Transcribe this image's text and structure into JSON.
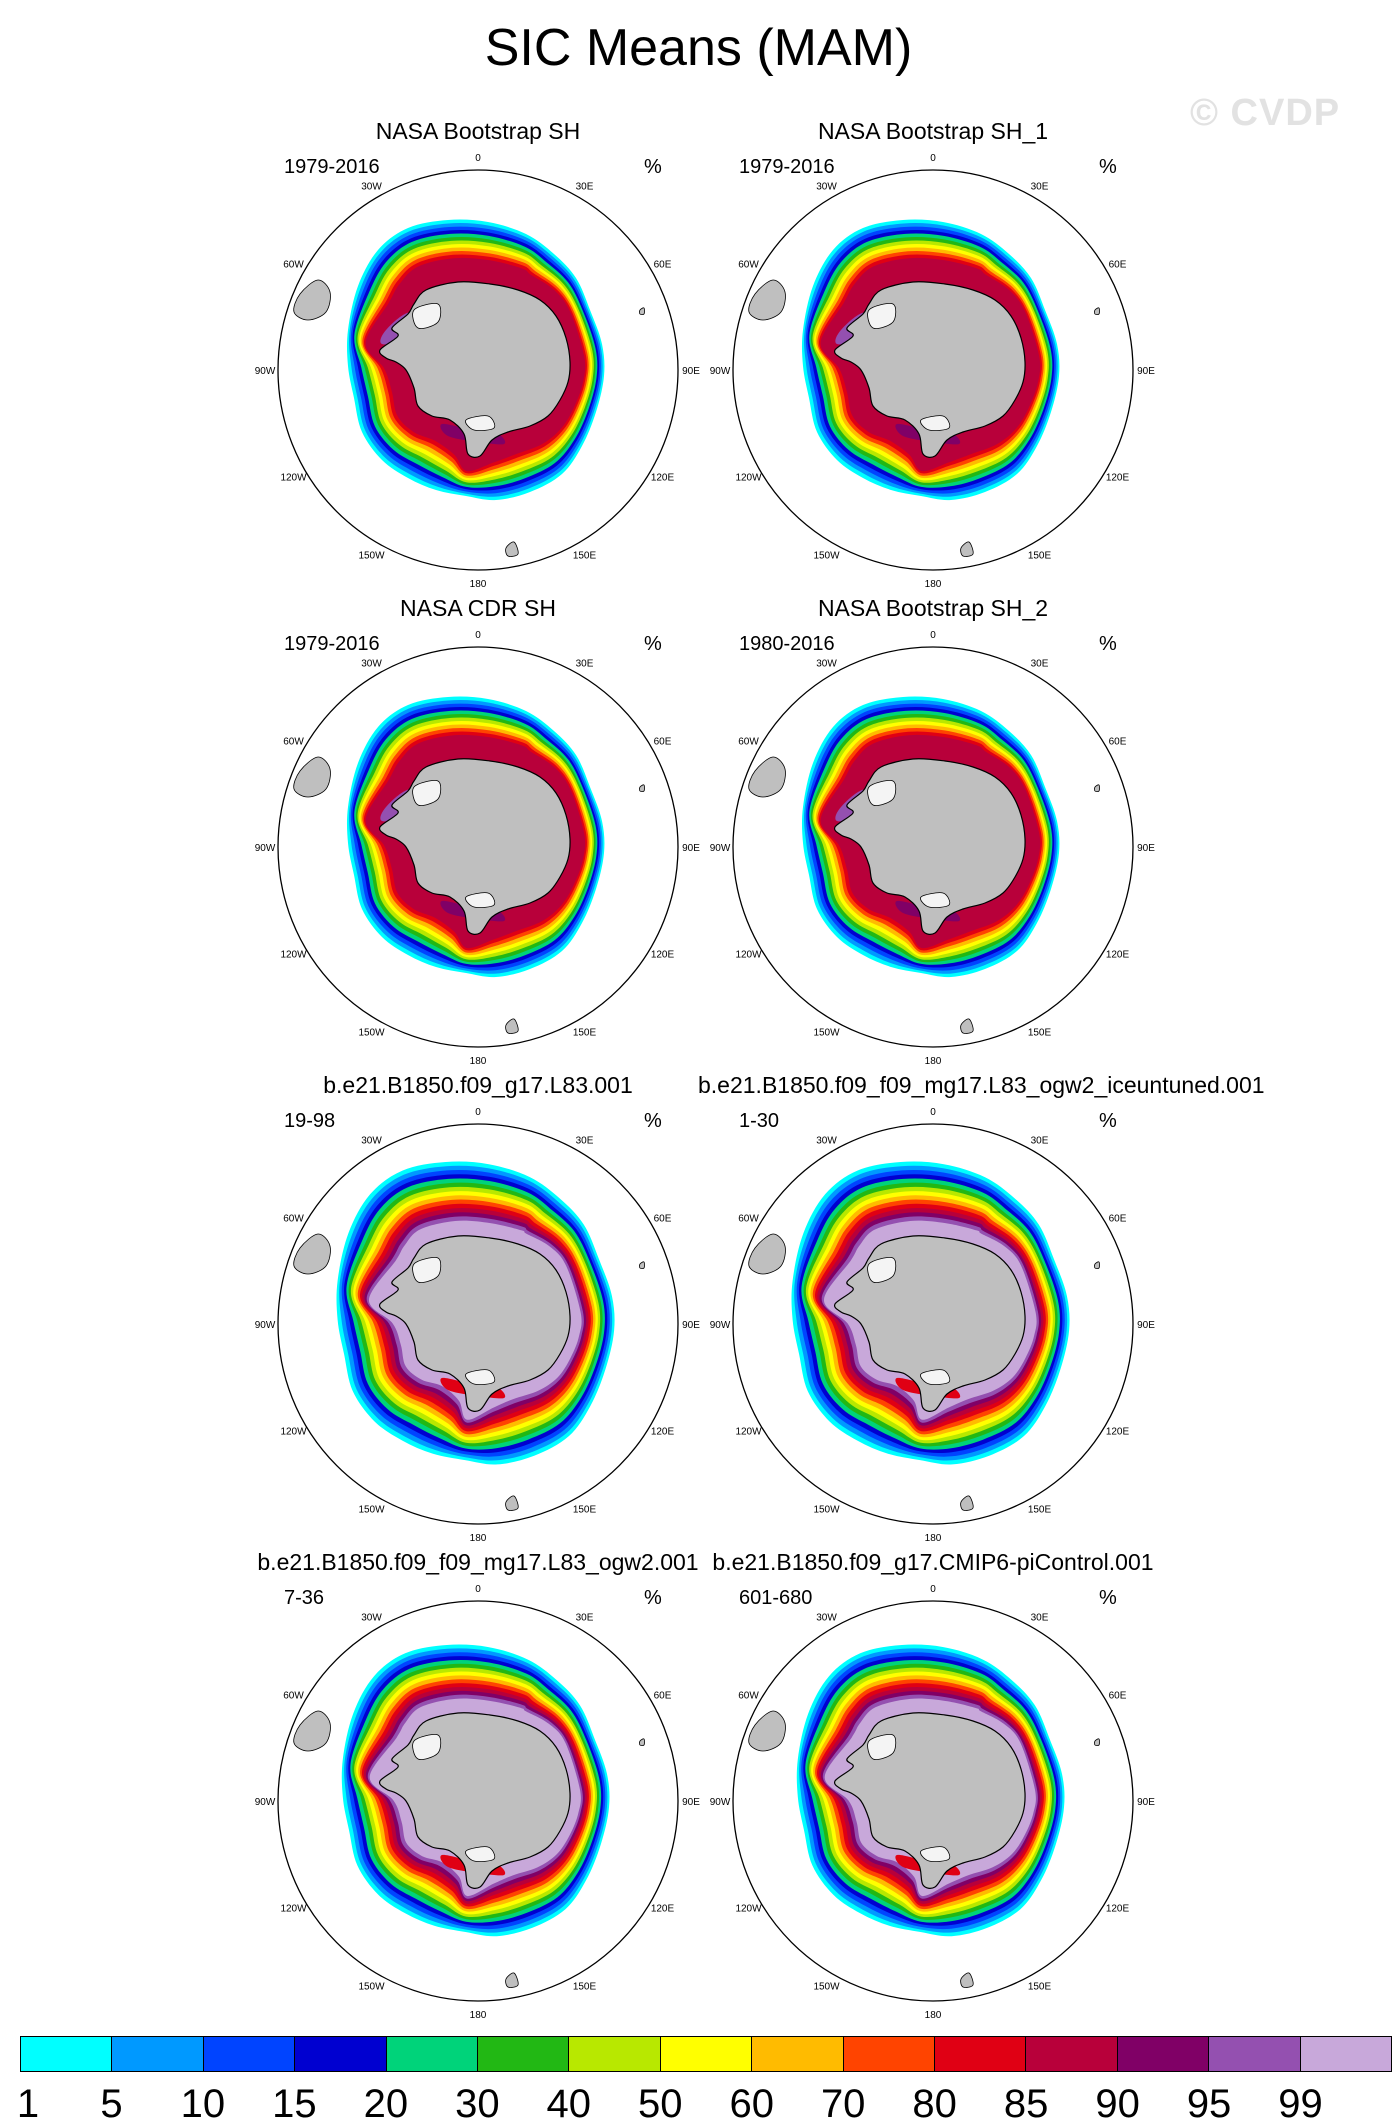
{
  "title": "SIC Means (MAM)",
  "watermark": "© CVDP",
  "unit": "%",
  "longitude_labels": [
    "0",
    "30E",
    "60E",
    "90E",
    "120E",
    "150E",
    "180",
    "150W",
    "120W",
    "90W",
    "60W",
    "30W"
  ],
  "panels": [
    {
      "title": "NASA Bootstrap SH",
      "period": "1979-2016",
      "unit": "%",
      "kind": "obs"
    },
    {
      "title": "NASA Bootstrap SH_1",
      "period": "1979-2016",
      "unit": "%",
      "kind": "obs"
    },
    {
      "title": "NASA CDR SH",
      "period": "1979-2016",
      "unit": "%",
      "kind": "obs"
    },
    {
      "title": "NASA Bootstrap SH_2",
      "period": "1980-2016",
      "unit": "%",
      "kind": "obs"
    },
    {
      "title": "b.e21.B1850.f09_g17.L83.001",
      "period": "19-98",
      "unit": "%",
      "kind": "model"
    },
    {
      "title": "b.e21.B1850.f09_f09_mg17.L83_ogw2_iceuntuned.001",
      "period": "1-30",
      "unit": "%",
      "kind": "model"
    },
    {
      "title": "b.e21.B1850.f09_f09_mg17.L83_ogw2.001",
      "period": "7-36",
      "unit": "%",
      "kind": "model2"
    },
    {
      "title": "b.e21.B1850.f09_g17.CMIP6-piControl.001",
      "period": "601-680",
      "unit": "%",
      "kind": "model2"
    }
  ],
  "colorbar": {
    "labels": [
      "1",
      "5",
      "10",
      "15",
      "20",
      "30",
      "40",
      "50",
      "60",
      "70",
      "80",
      "85",
      "90",
      "95",
      "99"
    ],
    "colors": [
      "#00ffff",
      "#0099ff",
      "#0044ff",
      "#0000d0",
      "#00d37a",
      "#22b814",
      "#b8e800",
      "#ffff00",
      "#ffbb00",
      "#ff4400",
      "#e00014",
      "#b8003a",
      "#800066",
      "#9450b0",
      "#c8a8da"
    ]
  },
  "land_color": "#bfbfbf"
}
